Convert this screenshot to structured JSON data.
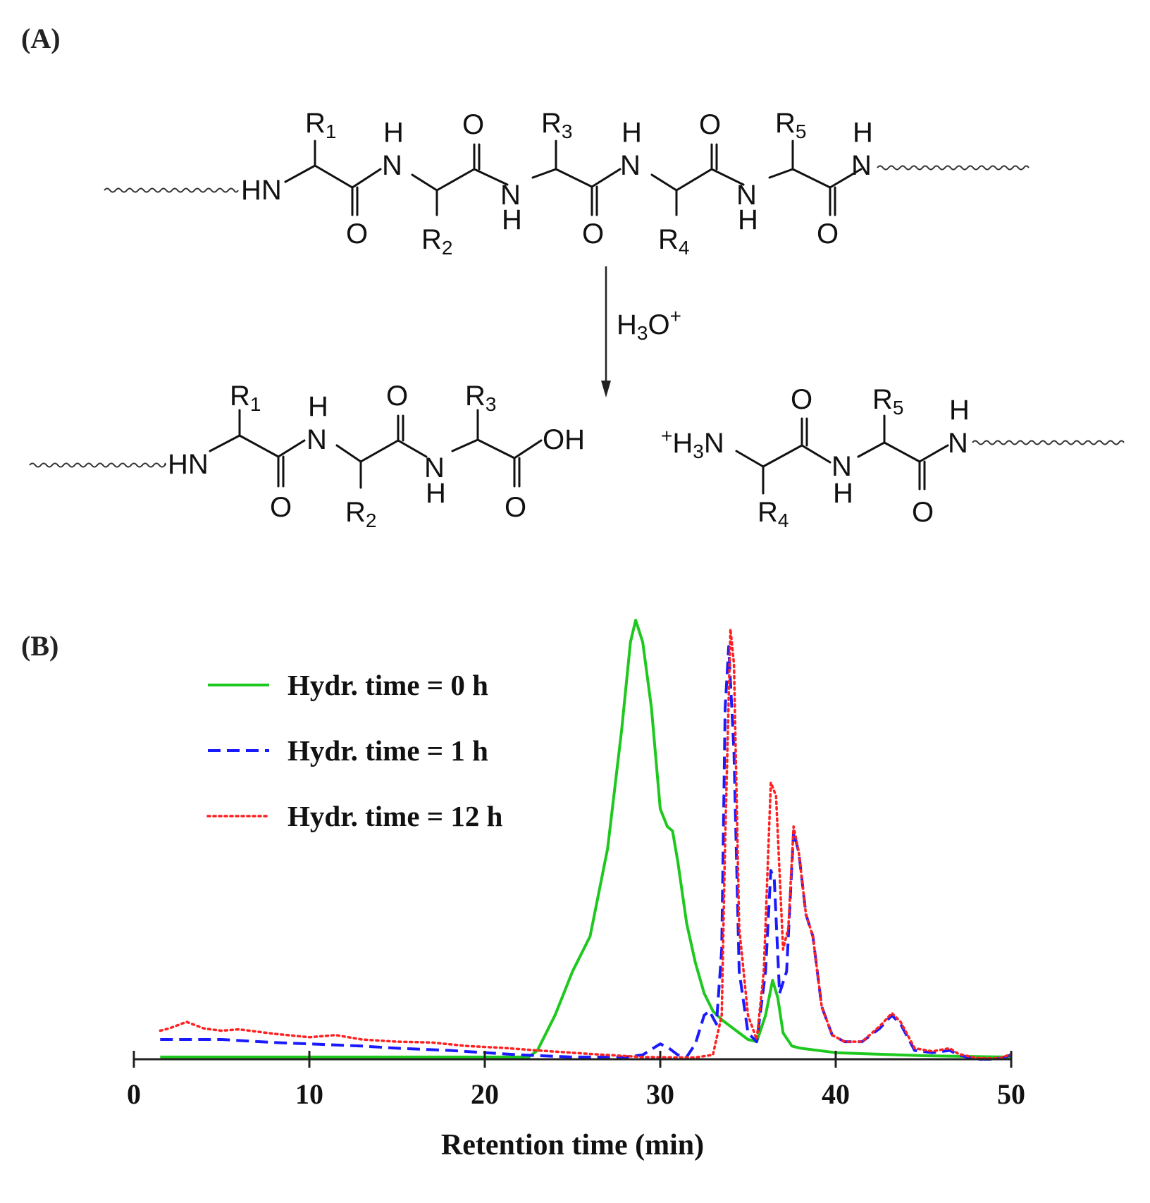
{
  "panel_a": {
    "label": "(A)",
    "reactant": {
      "groups": [
        "R",
        "R",
        "R",
        "R",
        "R"
      ],
      "group_subs": [
        "1",
        "2",
        "3",
        "4",
        "5"
      ],
      "nh": "HN",
      "n": "N",
      "h": "H",
      "o": "O"
    },
    "reagent": {
      "main": "H",
      "sub": "3",
      "mid": "O",
      "sup": "+"
    },
    "product_left": {
      "groups": [
        "R",
        "R",
        "R"
      ],
      "group_subs": [
        "1",
        "2",
        "3"
      ],
      "nh": "HN",
      "oh": "OH"
    },
    "product_right": {
      "prefix": "+",
      "h": "H",
      "sub3": "3",
      "n": "N",
      "groups": [
        "R",
        "R"
      ],
      "group_subs": [
        "4",
        "5"
      ]
    }
  },
  "panel_b": {
    "label": "(B)"
  },
  "chart_data": {
    "type": "line",
    "xlabel": "Retention time (min)",
    "ylabel": "",
    "xlim": [
      0,
      50
    ],
    "xticks": [
      0,
      10,
      20,
      30,
      40,
      50
    ],
    "xtick_labels": [
      "0",
      "10",
      "20",
      "30",
      "40",
      "50"
    ],
    "ylim": [
      0,
      1.0
    ],
    "grid": false,
    "legend_position": "top-left",
    "series": [
      {
        "name": "Hydr. time = 0 h",
        "color": "#1ec81e",
        "style": "solid",
        "points": [
          [
            1.5,
            0.005
          ],
          [
            5,
            0.005
          ],
          [
            10,
            0.005
          ],
          [
            15,
            0.005
          ],
          [
            20,
            0.005
          ],
          [
            22.5,
            0.005
          ],
          [
            23,
            0.02
          ],
          [
            24,
            0.1
          ],
          [
            25,
            0.2
          ],
          [
            26,
            0.28
          ],
          [
            27,
            0.48
          ],
          [
            27.8,
            0.75
          ],
          [
            28.3,
            0.95
          ],
          [
            28.6,
            1.0
          ],
          [
            29,
            0.95
          ],
          [
            29.5,
            0.8
          ],
          [
            30,
            0.57
          ],
          [
            30.4,
            0.53
          ],
          [
            30.7,
            0.52
          ],
          [
            31,
            0.45
          ],
          [
            31.5,
            0.31
          ],
          [
            32,
            0.22
          ],
          [
            32.5,
            0.15
          ],
          [
            33,
            0.11
          ],
          [
            33.5,
            0.09
          ],
          [
            34,
            0.075
          ],
          [
            34.5,
            0.06
          ],
          [
            35,
            0.045
          ],
          [
            35.5,
            0.04
          ],
          [
            36,
            0.1
          ],
          [
            36.4,
            0.18
          ],
          [
            36.7,
            0.14
          ],
          [
            37,
            0.06
          ],
          [
            37.5,
            0.03
          ],
          [
            38,
            0.025
          ],
          [
            40,
            0.015
          ],
          [
            42,
            0.012
          ],
          [
            45,
            0.008
          ],
          [
            48,
            0.006
          ],
          [
            50,
            0.005
          ]
        ]
      },
      {
        "name": "Hydr. time = 1 h",
        "color": "#1a1aff",
        "style": "dashed",
        "points": [
          [
            1.5,
            0.045
          ],
          [
            3,
            0.045
          ],
          [
            5,
            0.045
          ],
          [
            8,
            0.038
          ],
          [
            10,
            0.035
          ],
          [
            13,
            0.03
          ],
          [
            15,
            0.025
          ],
          [
            18,
            0.02
          ],
          [
            20,
            0.015
          ],
          [
            22,
            0.01
          ],
          [
            25,
            0.005
          ],
          [
            28,
            0.005
          ],
          [
            29,
            0.01
          ],
          [
            30,
            0.035
          ],
          [
            30.5,
            0.025
          ],
          [
            31,
            0.01
          ],
          [
            31.5,
            0.005
          ],
          [
            32,
            0.035
          ],
          [
            32.5,
            0.1
          ],
          [
            32.8,
            0.11
          ],
          [
            33.2,
            0.08
          ],
          [
            33.5,
            0.25
          ],
          [
            33.7,
            0.8
          ],
          [
            33.9,
            0.94
          ],
          [
            34.2,
            0.7
          ],
          [
            34.5,
            0.2
          ],
          [
            35,
            0.06
          ],
          [
            35.5,
            0.04
          ],
          [
            36,
            0.2
          ],
          [
            36.3,
            0.43
          ],
          [
            36.5,
            0.41
          ],
          [
            36.8,
            0.15
          ],
          [
            37.2,
            0.2
          ],
          [
            37.6,
            0.52
          ],
          [
            37.9,
            0.47
          ],
          [
            38.3,
            0.33
          ],
          [
            38.7,
            0.28
          ],
          [
            39.2,
            0.12
          ],
          [
            39.8,
            0.055
          ],
          [
            40.5,
            0.04
          ],
          [
            41.5,
            0.04
          ],
          [
            42.5,
            0.07
          ],
          [
            43.2,
            0.1
          ],
          [
            43.7,
            0.08
          ],
          [
            44.5,
            0.02
          ],
          [
            45.5,
            0.015
          ],
          [
            46.5,
            0.02
          ],
          [
            47,
            0.01
          ],
          [
            48,
            0.0
          ],
          [
            49,
            0.0
          ],
          [
            49.5,
            0.003
          ],
          [
            50,
            0.01
          ]
        ]
      },
      {
        "name": "Hydr. time = 12 h",
        "color": "#ff2020",
        "style": "dotted",
        "points": [
          [
            1.5,
            0.065
          ],
          [
            2,
            0.07
          ],
          [
            3,
            0.085
          ],
          [
            4,
            0.07
          ],
          [
            5,
            0.065
          ],
          [
            6,
            0.068
          ],
          [
            8,
            0.058
          ],
          [
            10,
            0.05
          ],
          [
            11.5,
            0.055
          ],
          [
            13,
            0.045
          ],
          [
            15,
            0.04
          ],
          [
            17,
            0.038
          ],
          [
            19,
            0.03
          ],
          [
            21,
            0.026
          ],
          [
            23,
            0.02
          ],
          [
            26,
            0.012
          ],
          [
            29,
            0.005
          ],
          [
            31,
            0.004
          ],
          [
            32,
            0.004
          ],
          [
            33,
            0.01
          ],
          [
            33.5,
            0.1
          ],
          [
            33.7,
            0.5
          ],
          [
            34,
            0.98
          ],
          [
            34.2,
            0.9
          ],
          [
            34.5,
            0.3
          ],
          [
            35,
            0.1
          ],
          [
            35.5,
            0.045
          ],
          [
            35.9,
            0.2
          ],
          [
            36.3,
            0.63
          ],
          [
            36.6,
            0.6
          ],
          [
            37,
            0.25
          ],
          [
            37.3,
            0.3
          ],
          [
            37.6,
            0.53
          ],
          [
            37.9,
            0.47
          ],
          [
            38.3,
            0.33
          ],
          [
            38.7,
            0.28
          ],
          [
            39.2,
            0.12
          ],
          [
            39.8,
            0.055
          ],
          [
            40.5,
            0.04
          ],
          [
            41.5,
            0.04
          ],
          [
            42.5,
            0.075
          ],
          [
            43.2,
            0.105
          ],
          [
            43.7,
            0.085
          ],
          [
            44.5,
            0.025
          ],
          [
            45.5,
            0.018
          ],
          [
            46.5,
            0.025
          ],
          [
            47,
            0.012
          ],
          [
            48,
            0.003
          ],
          [
            49,
            0.002
          ],
          [
            49.5,
            0.004
          ],
          [
            50,
            0.012
          ]
        ]
      }
    ]
  }
}
